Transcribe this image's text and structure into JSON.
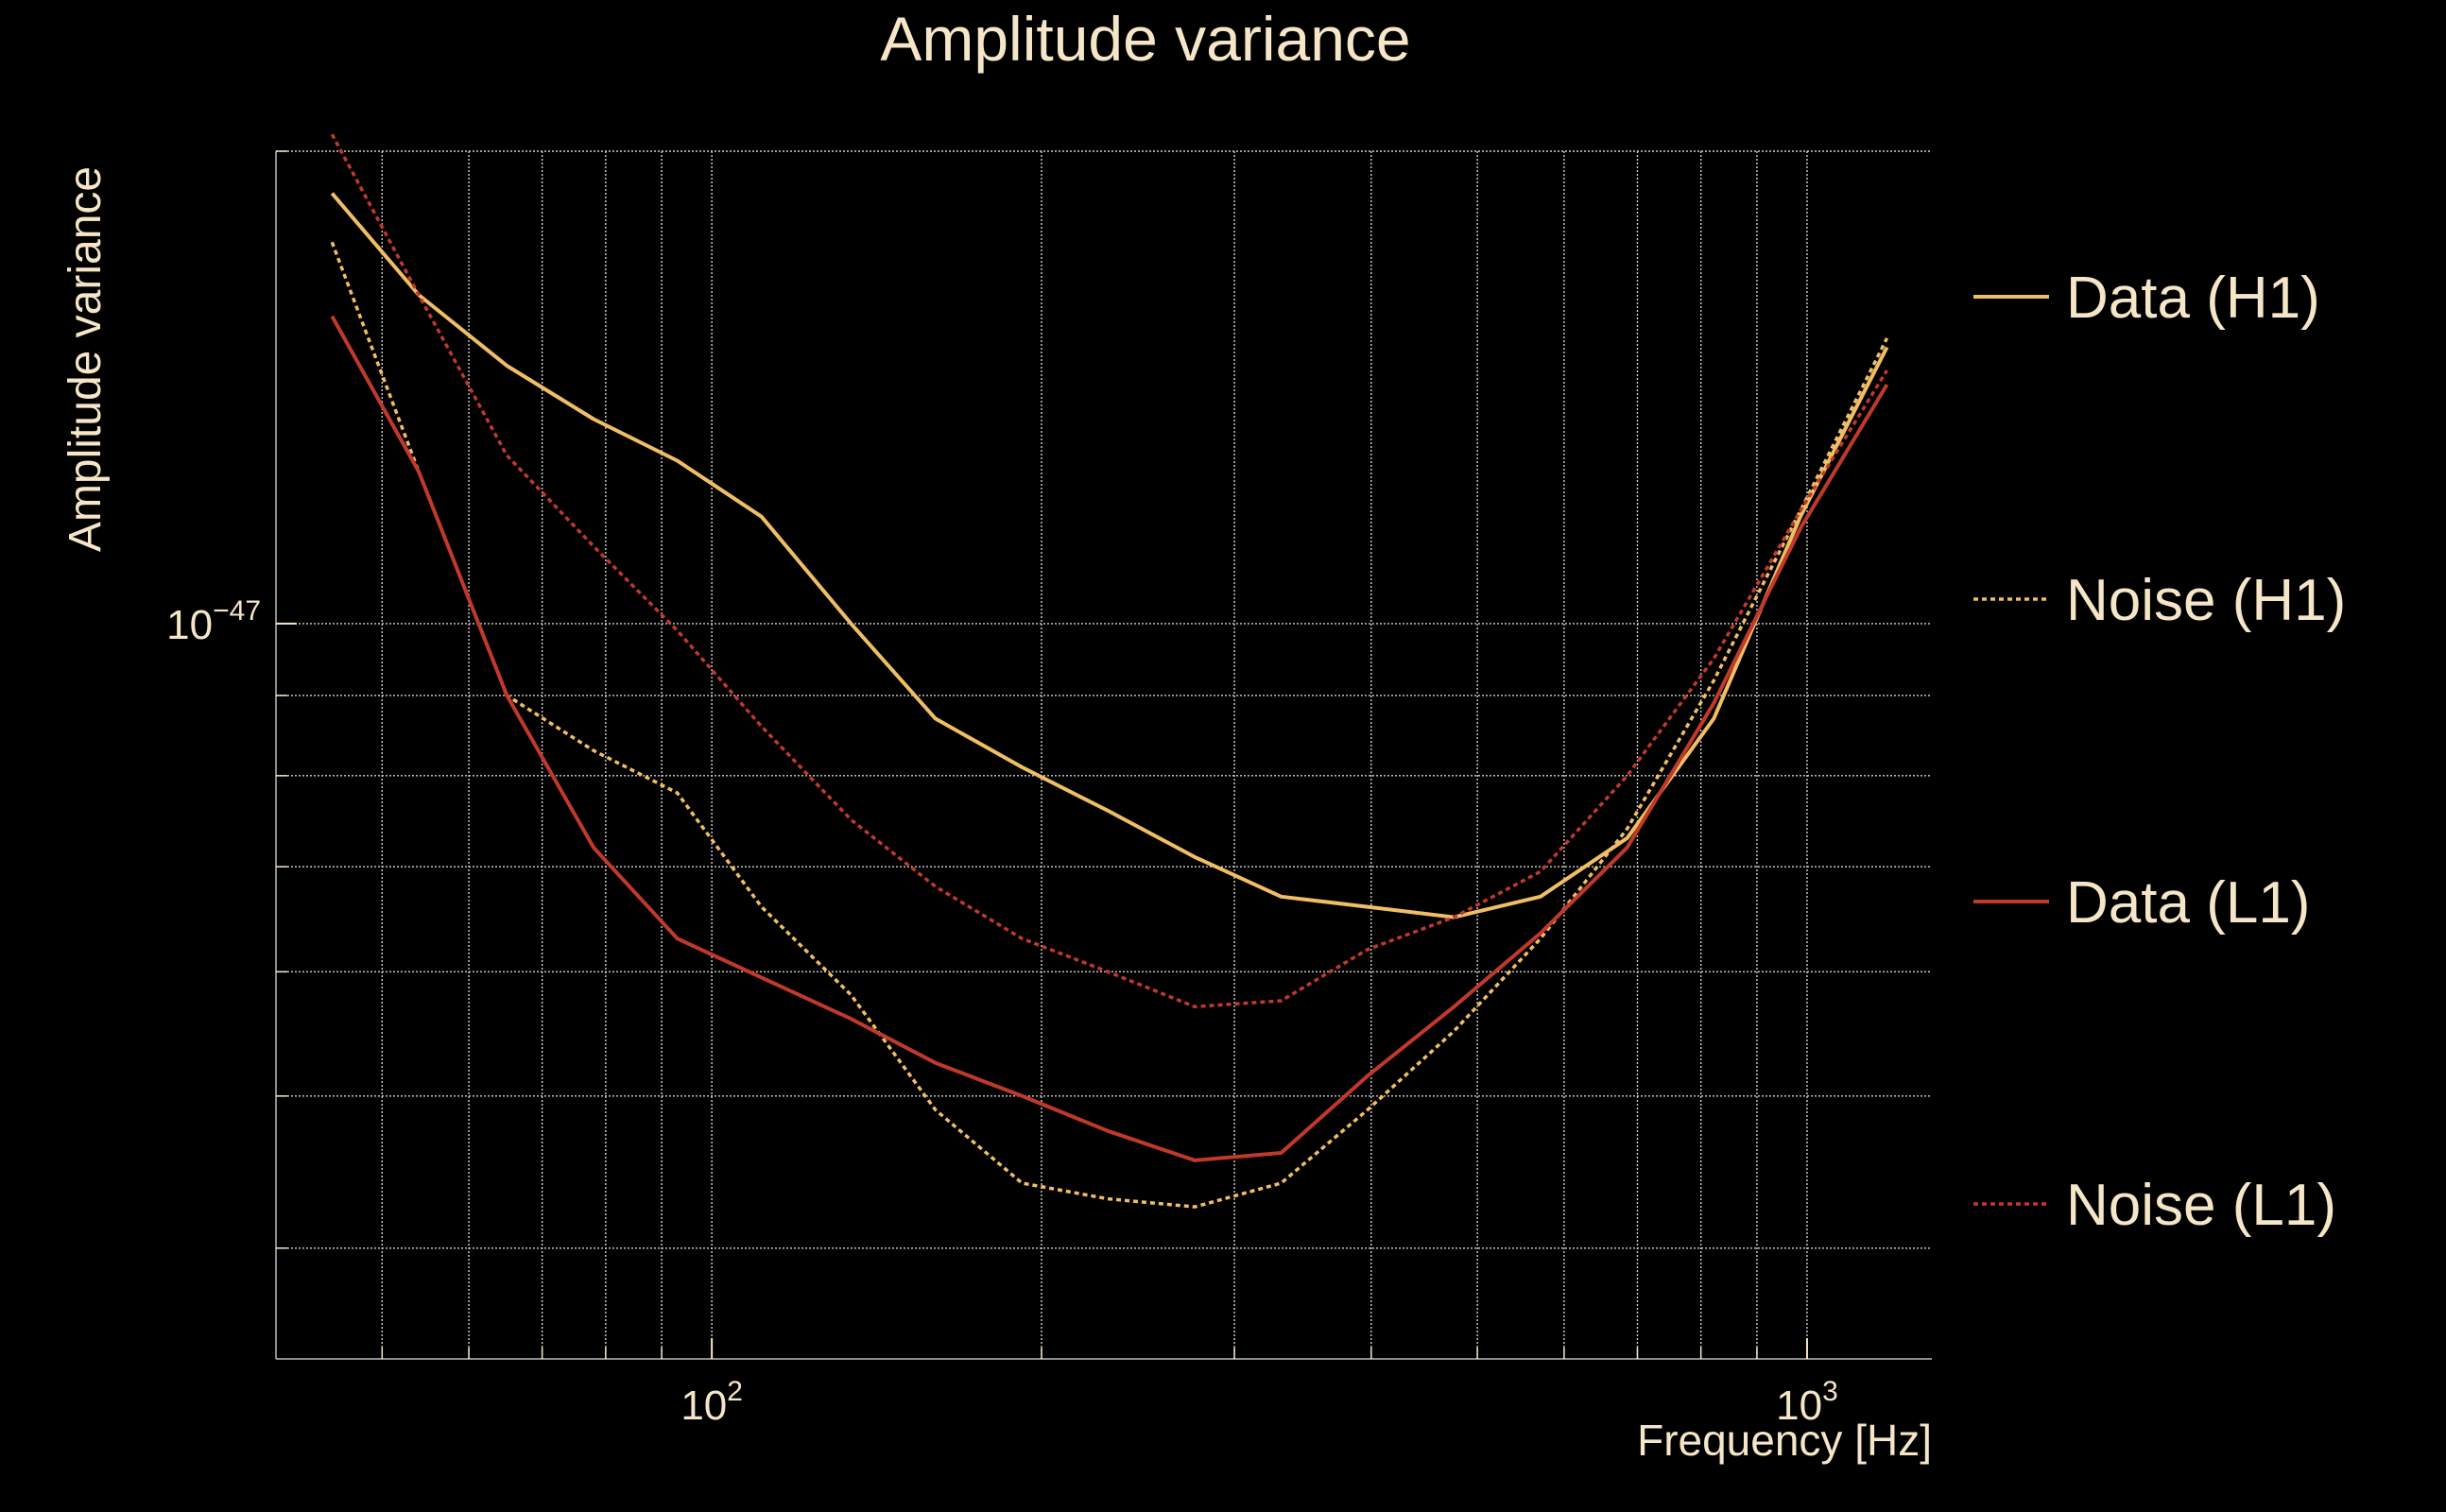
{
  "chart_data": {
    "type": "line",
    "title": "Amplitude variance",
    "xlabel": "Frequency [Hz]",
    "ylabel": "Amplitude variance",
    "xscale": "log",
    "yscale": "log",
    "xlim": [
      40,
      1300
    ],
    "ylim": [
      3.4e-48,
      2e-47
    ],
    "grid": true,
    "legend_position": "right",
    "x_ticks": [
      {
        "value": 100,
        "base": "10",
        "exp": "2"
      },
      {
        "value": 1000,
        "base": "10",
        "exp": "3"
      }
    ],
    "y_ticks": [
      {
        "value": 1e-47,
        "base": "10",
        "exp": "−47"
      }
    ],
    "x_minor_ticks": [
      50,
      60,
      70,
      80,
      90,
      200,
      300,
      400,
      500,
      600,
      700,
      800,
      900
    ],
    "y_minor_ticks": [
      4e-48,
      5e-48,
      6e-48,
      7e-48,
      8e-48,
      9e-48,
      2e-47
    ],
    "x": [
      45,
      54,
      65,
      78,
      93,
      111,
      134,
      160,
      192,
      230,
      276,
      331,
      397,
      476,
      571,
      685,
      822,
      986,
      1183
    ],
    "series": [
      {
        "name": "Data (H1)",
        "color": "#f0be64",
        "dash": "solid",
        "values": [
          1.88e-47,
          1.62e-47,
          1.46e-47,
          1.35e-47,
          1.27e-47,
          1.17e-47,
          1e-47,
          8.7e-48,
          8.1e-48,
          7.6e-48,
          7.1e-48,
          6.7e-48,
          6.6e-48,
          6.5e-48,
          6.7e-48,
          7.3e-48,
          8.7e-48,
          1.17e-47,
          1.5e-47
        ]
      },
      {
        "name": "Noise (H1)",
        "color": "#f0be64",
        "dash": "dotted",
        "values": [
          1.75e-47,
          1.25e-47,
          9e-48,
          8.3e-48,
          7.8e-48,
          6.6e-48,
          5.8e-48,
          4.9e-48,
          4.4e-48,
          4.3e-48,
          4.25e-48,
          4.4e-48,
          4.9e-48,
          5.5e-48,
          6.3e-48,
          7.4e-48,
          9.2e-48,
          1.18e-47,
          1.52e-47
        ]
      },
      {
        "name": "Data (L1)",
        "color": "#c0392b",
        "dash": "solid",
        "values": [
          1.57e-47,
          1.25e-47,
          9e-48,
          7.2e-48,
          6.3e-48,
          5.95e-48,
          5.6e-48,
          5.25e-48,
          5e-48,
          4.75e-48,
          4.55e-48,
          4.6e-48,
          5.15e-48,
          5.7e-48,
          6.35e-48,
          7.2e-48,
          8.9e-48,
          1.15e-47,
          1.42e-47
        ]
      },
      {
        "name": "Noise (L1)",
        "color": "#c0392b",
        "dash": "dotted",
        "values": [
          2.05e-47,
          1.62e-47,
          1.28e-47,
          1.12e-47,
          9.9e-48,
          8.6e-48,
          7.5e-48,
          6.8e-48,
          6.3e-48,
          6e-48,
          5.7e-48,
          5.75e-48,
          6.2e-48,
          6.5e-48,
          6.95e-48,
          8e-48,
          9.5e-48,
          1.18e-47,
          1.45e-47
        ]
      }
    ]
  }
}
